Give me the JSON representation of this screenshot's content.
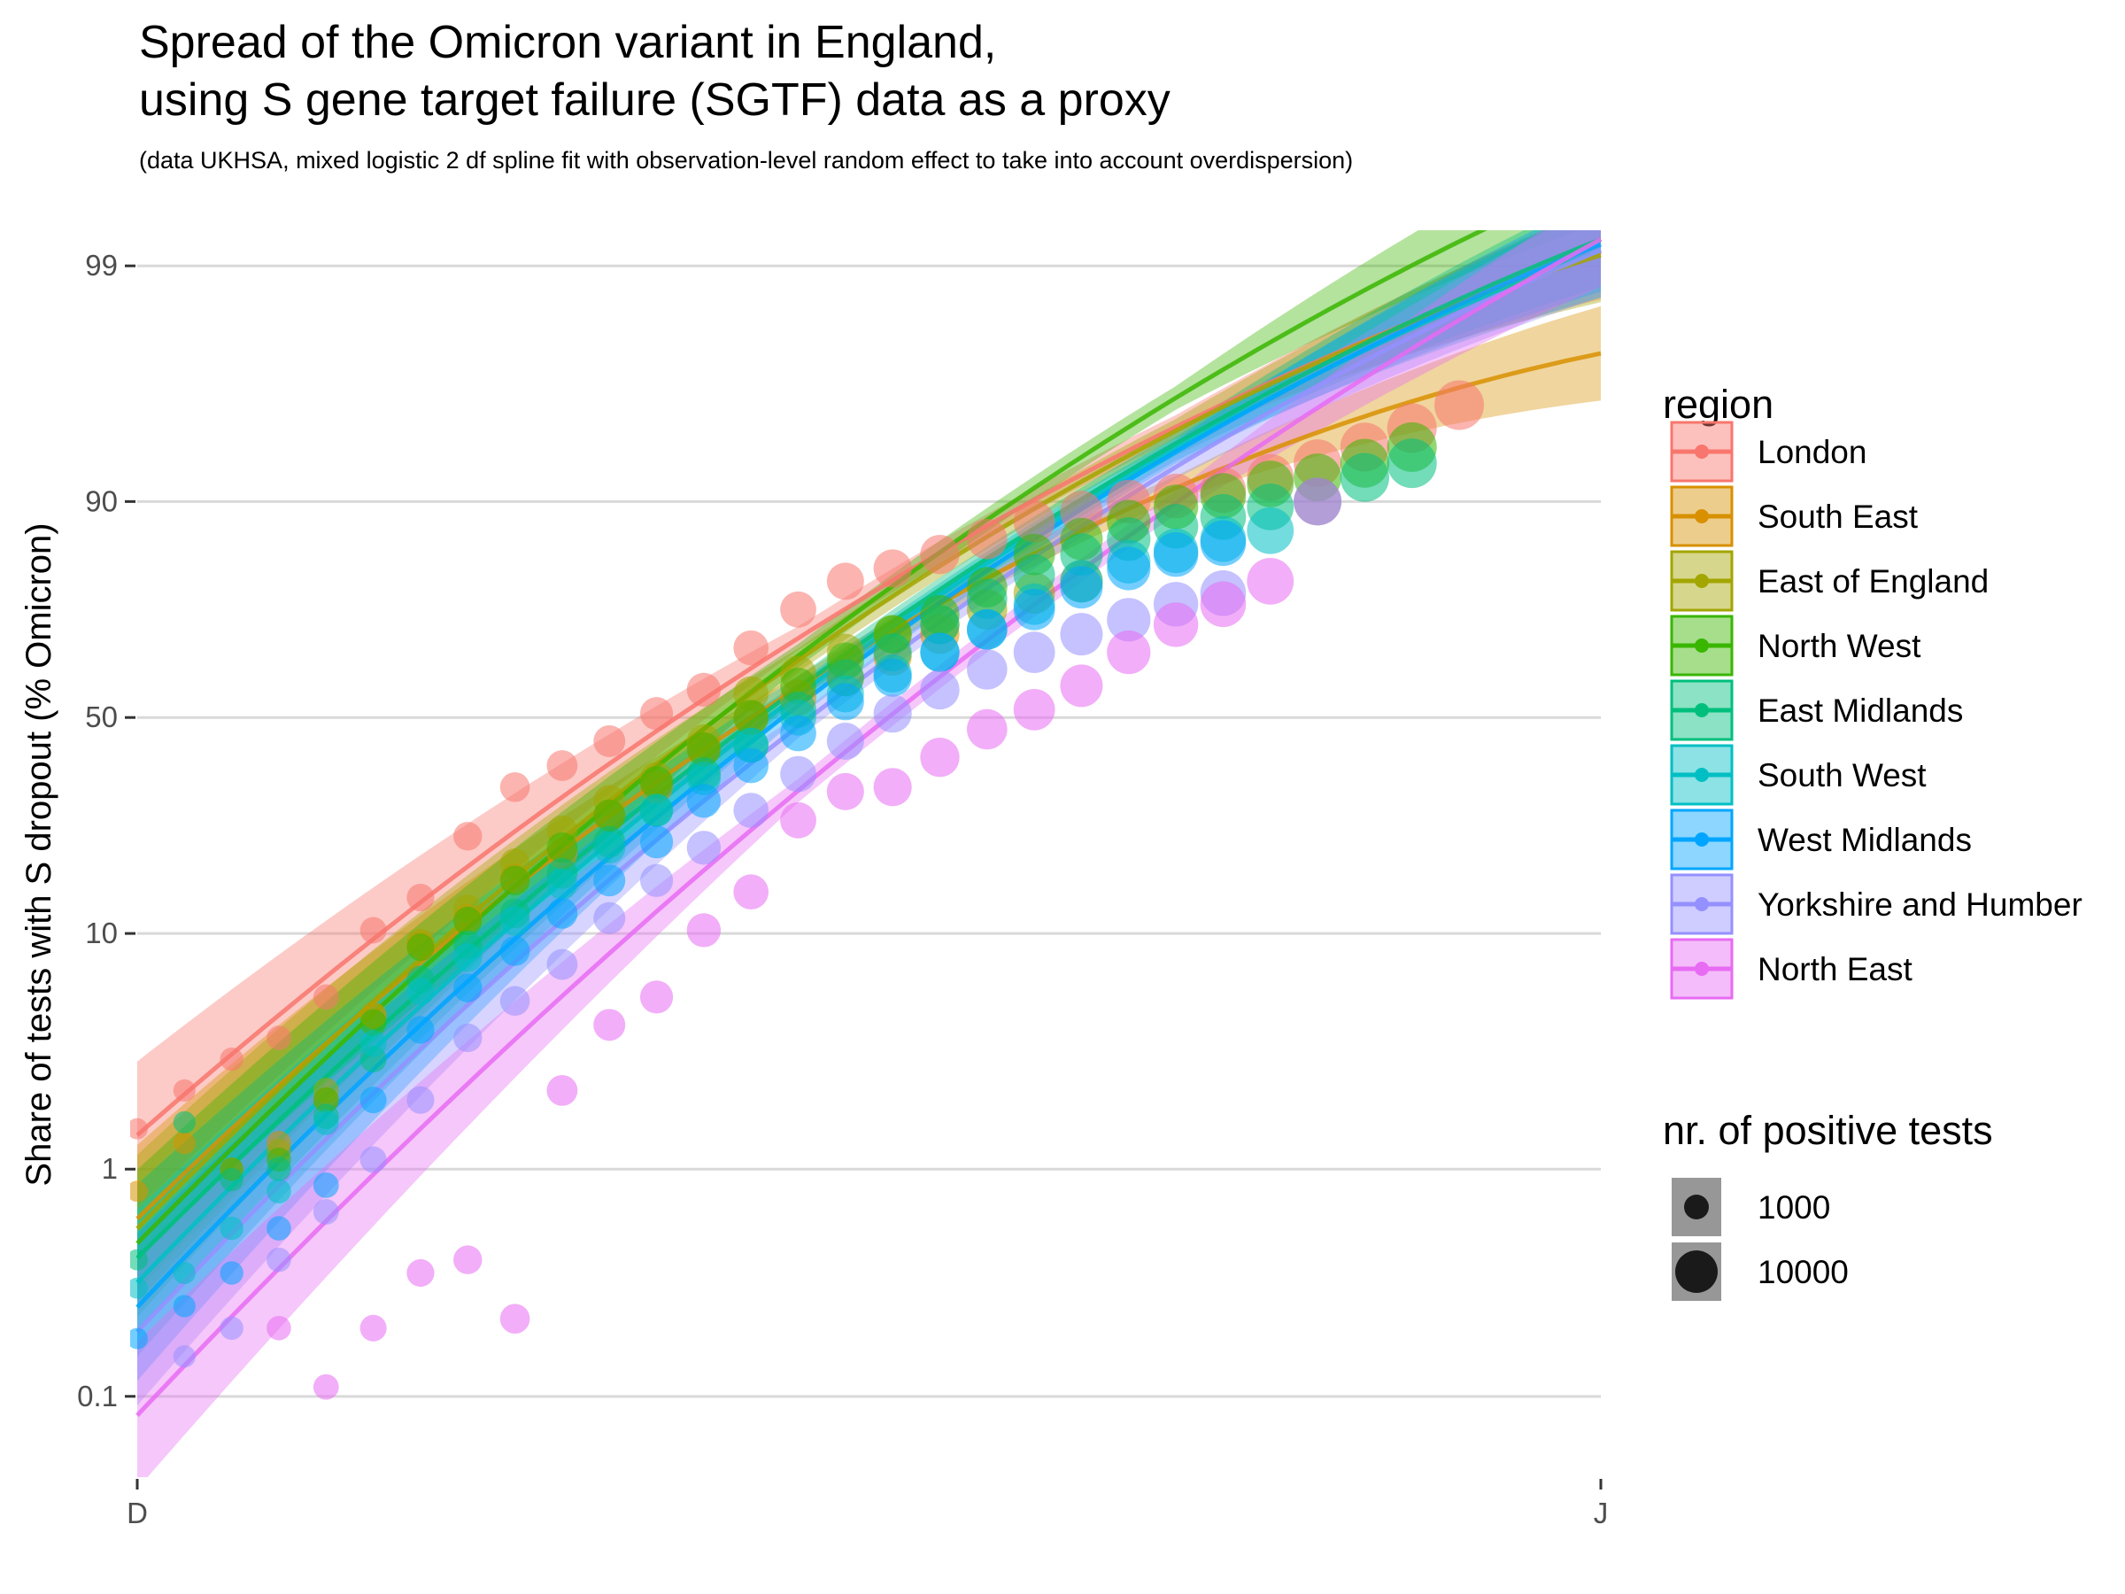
{
  "chart_data": {
    "type": "scatter",
    "title": [
      "Spread of the Omicron variant in England,",
      "using S gene target failure (SGTF) data as a proxy"
    ],
    "subtitle": "(data UKHSA, mixed logistic 2 df spline fit with observation-level random effect to take into account overdispersion)",
    "xlabel": "",
    "ylabel": "Share of tests with S dropout (% Omicron)",
    "x_ticks": [
      "D",
      "J"
    ],
    "x_range_days": [
      0,
      31
    ],
    "y_scale": "logit",
    "y_ticks": [
      0.1,
      1,
      10,
      50,
      90,
      99
    ],
    "y_tick_labels": [
      "0.1",
      "1",
      "10",
      "50",
      "90",
      "99"
    ],
    "grid": true,
    "legend_position": "right",
    "legend_title": "region",
    "size_legend_title": "nr. of positive tests",
    "size_legend_labels": [
      "1000",
      "10000"
    ],
    "series": [
      {
        "name": "London",
        "color": "#F8766D",
        "fit": {
          "a": -4.25,
          "b": 0.42,
          "c": -0.0042
        },
        "points": [
          [
            0,
            1.5
          ],
          [
            1,
            2.2
          ],
          [
            2,
            3.0
          ],
          [
            3,
            3.7
          ],
          [
            4,
            5.5
          ],
          [
            5,
            10.3
          ],
          [
            6,
            13.8
          ],
          [
            7,
            23
          ],
          [
            8,
            33
          ],
          [
            9,
            38
          ],
          [
            10,
            44
          ],
          [
            11,
            51
          ],
          [
            12,
            57
          ],
          [
            13,
            67
          ],
          [
            14,
            75
          ],
          [
            15,
            80
          ],
          [
            16,
            82
          ],
          [
            17,
            84
          ],
          [
            18,
            86
          ],
          [
            19,
            88
          ],
          [
            20,
            89
          ],
          [
            21,
            90
          ],
          [
            22,
            90.5
          ],
          [
            23,
            91
          ],
          [
            24,
            92
          ],
          [
            25,
            93
          ],
          [
            26,
            94
          ],
          [
            27,
            95
          ],
          [
            28,
            96
          ]
        ]
      },
      {
        "name": "South East",
        "color": "#D89000",
        "fit": {
          "a": -5.1,
          "b": 0.47,
          "c": -0.006
        },
        "points": [
          [
            0,
            0.8
          ],
          [
            1,
            1.3
          ],
          [
            2,
            1.0
          ],
          [
            3,
            1.3
          ],
          [
            4,
            2.0
          ],
          [
            5,
            4.6
          ],
          [
            6,
            9.0
          ],
          [
            7,
            11.5
          ],
          [
            8,
            16.3
          ],
          [
            9,
            20
          ],
          [
            10,
            27
          ],
          [
            11,
            33
          ],
          [
            12,
            42
          ],
          [
            13,
            50
          ],
          [
            14,
            55
          ],
          [
            15,
            60
          ],
          [
            16,
            65
          ],
          [
            17,
            70
          ]
        ]
      },
      {
        "name": "East of England",
        "color": "#A3A500",
        "fit": {
          "a": -5.2,
          "b": 0.49,
          "c": -0.0055
        },
        "points": [
          [
            3,
            1.2
          ],
          [
            4,
            2.2
          ],
          [
            5,
            4.6
          ],
          [
            6,
            9.2
          ],
          [
            7,
            12.5
          ],
          [
            8,
            18.5
          ],
          [
            9,
            24
          ],
          [
            10,
            30
          ],
          [
            11,
            35
          ],
          [
            12,
            44
          ],
          [
            13,
            56
          ],
          [
            14,
            61
          ],
          [
            15,
            66
          ],
          [
            16,
            70
          ],
          [
            17,
            72
          ],
          [
            18,
            75
          ],
          [
            19,
            78
          ],
          [
            20,
            80
          ]
        ]
      },
      {
        "name": "North West",
        "color": "#39B600",
        "fit": {
          "a": -5.35,
          "b": 0.49,
          "c": -0.0045
        },
        "points": [
          [
            2,
            1.0
          ],
          [
            3,
            1.1
          ],
          [
            4,
            2.0
          ],
          [
            5,
            4.3
          ],
          [
            6,
            8.8
          ],
          [
            7,
            11.2
          ],
          [
            8,
            16
          ],
          [
            9,
            21
          ],
          [
            10,
            27
          ],
          [
            11,
            34
          ],
          [
            12,
            42
          ],
          [
            13,
            50
          ],
          [
            14,
            58
          ],
          [
            15,
            64
          ],
          [
            16,
            70
          ],
          [
            17,
            74
          ],
          [
            18,
            79
          ],
          [
            19,
            84
          ],
          [
            20,
            86
          ],
          [
            21,
            88
          ],
          [
            22,
            89.5
          ],
          [
            23,
            90.5
          ],
          [
            24,
            91.5
          ],
          [
            25,
            92
          ],
          [
            26,
            93
          ],
          [
            27,
            94
          ]
        ]
      },
      {
        "name": "East Midlands",
        "color": "#00BF7D",
        "fit": {
          "a": -5.5,
          "b": 0.48,
          "c": -0.0047
        },
        "points": [
          [
            0,
            0.4
          ],
          [
            1,
            1.6
          ],
          [
            2,
            0.9
          ],
          [
            3,
            1.0
          ],
          [
            4,
            1.7
          ],
          [
            5,
            3.0
          ],
          [
            6,
            6.5
          ],
          [
            7,
            9
          ],
          [
            8,
            12
          ],
          [
            9,
            17
          ],
          [
            10,
            22
          ],
          [
            11,
            28
          ],
          [
            12,
            36
          ],
          [
            13,
            43
          ],
          [
            14,
            52
          ],
          [
            15,
            60
          ],
          [
            16,
            66
          ],
          [
            17,
            72
          ],
          [
            18,
            77
          ],
          [
            19,
            81
          ],
          [
            20,
            84
          ],
          [
            21,
            86
          ],
          [
            22,
            87.5
          ],
          [
            23,
            88.5
          ],
          [
            24,
            89.5
          ],
          [
            25,
            90
          ],
          [
            26,
            92
          ],
          [
            27,
            93
          ]
        ]
      },
      {
        "name": "South West",
        "color": "#00BFC4",
        "fit": {
          "a": -5.75,
          "b": 0.5,
          "c": -0.0052
        },
        "points": [
          [
            0,
            0.3
          ],
          [
            1,
            0.35
          ],
          [
            2,
            0.55
          ],
          [
            3,
            0.8
          ],
          [
            4,
            1.6
          ],
          [
            5,
            3.5
          ],
          [
            6,
            5.8
          ],
          [
            7,
            8.0
          ],
          [
            8,
            11.2
          ],
          [
            9,
            15.5
          ],
          [
            10,
            21
          ],
          [
            11,
            28
          ],
          [
            12,
            35
          ],
          [
            13,
            43
          ],
          [
            14,
            50
          ],
          [
            15,
            56
          ],
          [
            16,
            61
          ],
          [
            17,
            66
          ],
          [
            18,
            71
          ],
          [
            19,
            76
          ],
          [
            20,
            80
          ],
          [
            21,
            83
          ],
          [
            22,
            84.5
          ],
          [
            23,
            86
          ],
          [
            24,
            87
          ]
        ]
      },
      {
        "name": "West Midlands",
        "color": "#00A5FF",
        "fit": {
          "a": -6.0,
          "b": 0.51,
          "c": -0.0052
        },
        "points": [
          [
            0,
            0.18
          ],
          [
            1,
            0.25
          ],
          [
            2,
            0.35
          ],
          [
            3,
            0.55
          ],
          [
            4,
            0.85
          ],
          [
            5,
            2.0
          ],
          [
            6,
            4.0
          ],
          [
            7,
            6.0
          ],
          [
            8,
            8.5
          ],
          [
            9,
            12
          ],
          [
            10,
            16
          ],
          [
            11,
            22
          ],
          [
            12,
            30
          ],
          [
            13,
            38
          ],
          [
            14,
            46
          ],
          [
            15,
            54
          ],
          [
            16,
            60
          ],
          [
            17,
            66
          ],
          [
            18,
            71
          ],
          [
            19,
            75
          ],
          [
            20,
            79
          ],
          [
            21,
            82
          ],
          [
            22,
            84
          ],
          [
            23,
            85.5
          ]
        ]
      },
      {
        "name": "Yorkshire and Humber",
        "color": "#9590FF",
        "fit": {
          "a": -6.25,
          "b": 0.51,
          "c": -0.005
        },
        "points": [
          [
            1,
            0.15
          ],
          [
            2,
            0.2
          ],
          [
            3,
            0.4
          ],
          [
            4,
            0.65
          ],
          [
            5,
            1.1
          ],
          [
            6,
            2.0
          ],
          [
            7,
            3.7
          ],
          [
            8,
            5.3
          ],
          [
            9,
            7.5
          ],
          [
            10,
            11.5
          ],
          [
            11,
            16
          ],
          [
            12,
            21
          ],
          [
            13,
            28
          ],
          [
            14,
            36
          ],
          [
            15,
            44
          ],
          [
            16,
            51
          ],
          [
            17,
            57
          ],
          [
            18,
            62
          ],
          [
            19,
            66
          ],
          [
            20,
            70
          ],
          [
            21,
            73
          ],
          [
            22,
            76
          ],
          [
            23,
            78
          ]
        ]
      },
      {
        "name": "North East",
        "color": "#E76BF3",
        "fit": {
          "a": -7.1,
          "b": 0.51,
          "c": -0.004
        },
        "points": [
          [
            3,
            0.2
          ],
          [
            4,
            0.11
          ],
          [
            5,
            0.2
          ],
          [
            6,
            0.35
          ],
          [
            7,
            0.4
          ],
          [
            8,
            0.22
          ],
          [
            9,
            2.2
          ],
          [
            10,
            4.2
          ],
          [
            11,
            5.5
          ],
          [
            12,
            10.3
          ],
          [
            13,
            14.5
          ],
          [
            14,
            26
          ],
          [
            15,
            32
          ],
          [
            16,
            33
          ],
          [
            17,
            40
          ],
          [
            18,
            47
          ],
          [
            19,
            52
          ],
          [
            20,
            58
          ],
          [
            21,
            66
          ],
          [
            22,
            72
          ],
          [
            23,
            76
          ],
          [
            24,
            80
          ],
          [
            25,
            90
          ]
        ]
      }
    ]
  }
}
